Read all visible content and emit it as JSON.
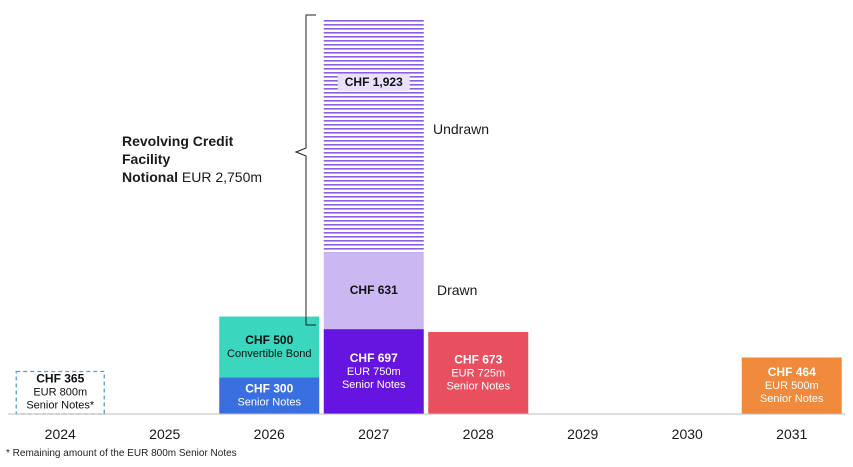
{
  "chart_data": {
    "type": "bar",
    "stacked": true,
    "categories": [
      "2024",
      "2025",
      "2026",
      "2027",
      "2028",
      "2029",
      "2030",
      "2031"
    ],
    "ylim": [
      0,
      3300
    ],
    "grid": false,
    "bars": [
      {
        "year": "2024",
        "segments": [
          {
            "value": 365,
            "label": "CHF 365",
            "sub": [
              "EUR 800m",
              "Senior Notes*"
            ],
            "style": "dashed-outline",
            "color": "#5b9bd5"
          }
        ]
      },
      {
        "year": "2026",
        "segments": [
          {
            "value": 300,
            "label": "CHF 300",
            "sub": [
              "Senior Notes"
            ],
            "style": "solid",
            "color": "#3a6fe0"
          },
          {
            "value": 500,
            "label": "CHF 500",
            "sub": [
              "Convertible Bond"
            ],
            "style": "solid",
            "color": "#3ad6bd"
          }
        ]
      },
      {
        "year": "2027",
        "segments": [
          {
            "value": 697,
            "label": "CHF 697",
            "sub": [
              "EUR 750m",
              "Senior Notes"
            ],
            "style": "solid",
            "color": "#6614e0"
          },
          {
            "value": 631,
            "label": "CHF 631",
            "sub": [],
            "style": "solid",
            "color": "#cbb8f2",
            "side_label": "Drawn"
          },
          {
            "value": 1923,
            "label": "CHF 1,923",
            "sub": [],
            "style": "hatched",
            "color": "#8a5fe0",
            "side_label": "Undrawn"
          }
        ]
      },
      {
        "year": "2028",
        "segments": [
          {
            "value": 673,
            "label": "CHF 673",
            "sub": [
              "EUR 725m",
              "Senior Notes"
            ],
            "style": "solid",
            "color": "#e8505f"
          }
        ]
      },
      {
        "year": "2031",
        "segments": [
          {
            "value": 464,
            "label": "CHF 464",
            "sub": [
              "EUR 500m",
              "Senior Notes"
            ],
            "style": "solid",
            "color": "#f08a3c"
          }
        ]
      }
    ],
    "annotations": {
      "rcf_bold_1": "Revolving Credit",
      "rcf_bold_2": "Facility",
      "rcf_bold_3": "Notional",
      "rcf_rest": " EUR 2,750m"
    },
    "footnote": "* Remaining amount of the EUR 800m Senior Notes"
  }
}
